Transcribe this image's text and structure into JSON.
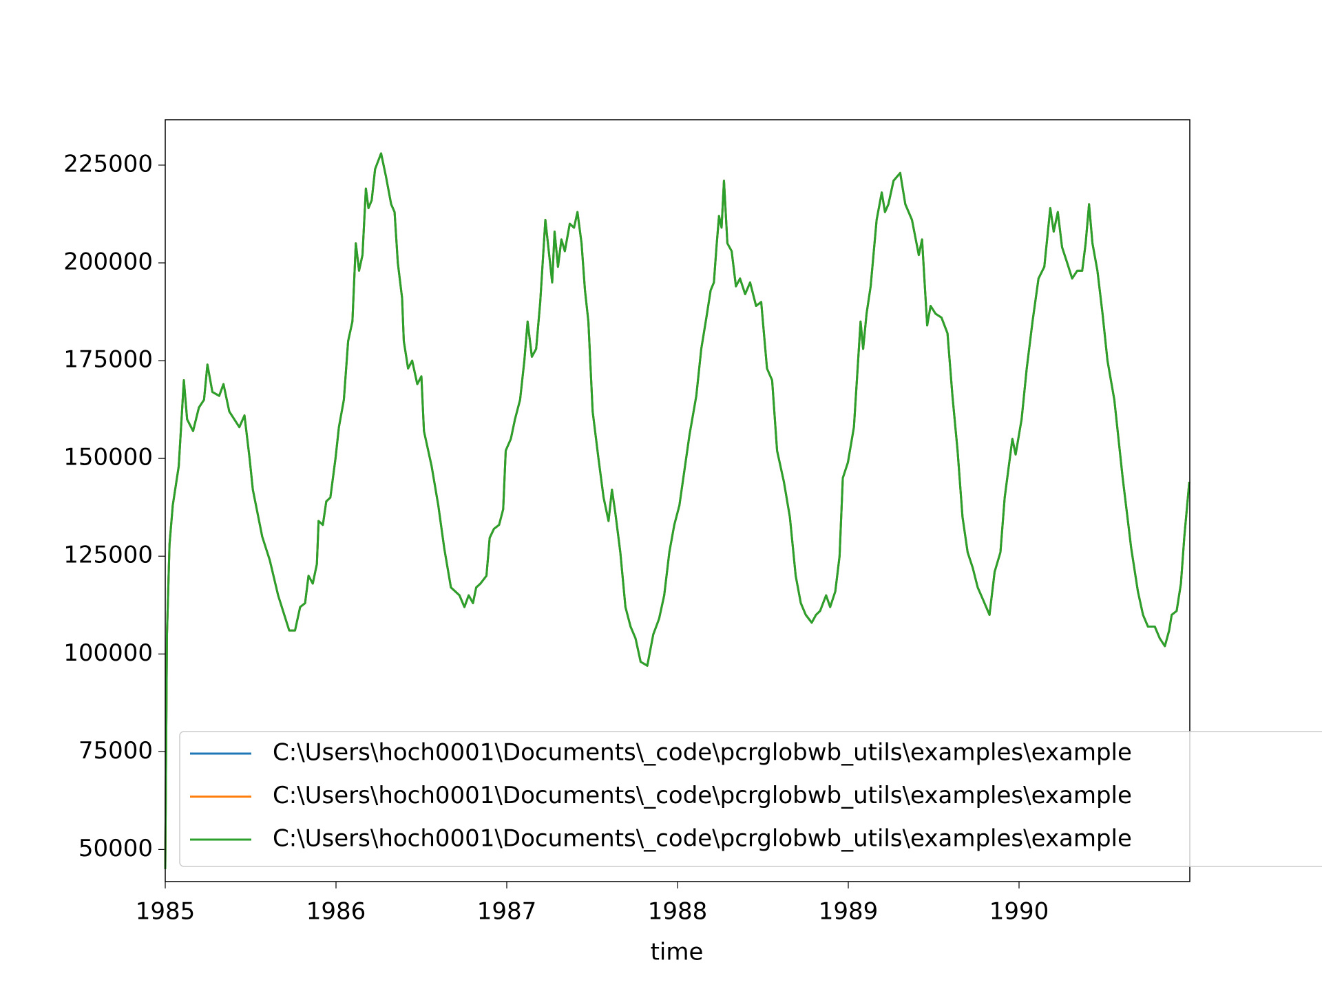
{
  "chart_data": {
    "type": "line",
    "xlabel": "time",
    "xlim": [
      1985,
      1991
    ],
    "xticks": [
      1985,
      1986,
      1987,
      1988,
      1989,
      1990
    ],
    "ylim": [
      41800,
      236600
    ],
    "yticks": [
      50000,
      75000,
      100000,
      125000,
      150000,
      175000,
      200000,
      225000
    ],
    "grid": false,
    "legend": "lower left",
    "x": [
      1985,
      1985.01,
      1985.025,
      1985.044,
      1985.079,
      1985.109,
      1985.128,
      1985.163,
      1985.197,
      1985.227,
      1985.247,
      1985.276,
      1985.316,
      1985.341,
      1985.375,
      1985.434,
      1985.464,
      1985.494,
      1985.513,
      1985.568,
      1985.612,
      1985.661,
      1985.726,
      1985.76,
      1985.79,
      1985.819,
      1985.839,
      1985.864,
      1985.888,
      1985.898,
      1985.923,
      1985.943,
      1985.967,
      1985.997,
      1986.017,
      1986.046,
      1986.071,
      1986.096,
      1986.116,
      1986.135,
      1986.155,
      1986.175,
      1986.19,
      1986.209,
      1986.229,
      1986.264,
      1986.293,
      1986.323,
      1986.343,
      1986.362,
      1986.387,
      1986.397,
      1986.422,
      1986.446,
      1986.476,
      1986.5,
      1986.515,
      1986.56,
      1986.599,
      1986.634,
      1986.673,
      1986.723,
      1986.752,
      1986.777,
      1986.802,
      1986.821,
      1986.846,
      1986.881,
      1986.9,
      1986.925,
      1986.955,
      1986.979,
      1986.994,
      1987.024,
      1987.048,
      1987.078,
      1987.103,
      1987.122,
      1987.147,
      1987.172,
      1987.196,
      1987.226,
      1987.246,
      1987.266,
      1987.28,
      1987.3,
      1987.32,
      1987.34,
      1987.369,
      1987.394,
      1987.414,
      1987.438,
      1987.458,
      1987.478,
      1987.503,
      1987.537,
      1987.567,
      1987.596,
      1987.616,
      1987.636,
      1987.665,
      1987.695,
      1987.725,
      1987.754,
      1987.784,
      1987.823,
      1987.858,
      1987.892,
      1987.922,
      1987.952,
      1987.981,
      1988.011,
      1988.07,
      1988.11,
      1988.139,
      1988.169,
      1988.194,
      1988.213,
      1988.228,
      1988.243,
      1988.258,
      1988.272,
      1988.292,
      1988.317,
      1988.342,
      1988.366,
      1988.396,
      1988.425,
      1988.46,
      1988.49,
      1988.524,
      1988.554,
      1988.583,
      1988.623,
      1988.658,
      1988.692,
      1988.722,
      1988.751,
      1988.786,
      1988.811,
      1988.835,
      1988.87,
      1988.894,
      1988.924,
      1988.949,
      1988.968,
      1988.998,
      1989.033,
      1989.072,
      1989.087,
      1989.107,
      1989.131,
      1989.166,
      1989.196,
      1989.215,
      1989.235,
      1989.265,
      1989.304,
      1989.334,
      1989.373,
      1989.413,
      1989.432,
      1989.462,
      1989.482,
      1989.511,
      1989.546,
      1989.581,
      1989.61,
      1989.64,
      1989.669,
      1989.699,
      1989.729,
      1989.758,
      1989.788,
      1989.827,
      1989.857,
      1989.891,
      1989.916,
      1989.961,
      1989.98,
      1990.015,
      1990.045,
      1990.079,
      1990.114,
      1990.148,
      1990.183,
      1990.203,
      1990.227,
      1990.252,
      1990.282,
      1990.311,
      1990.341,
      1990.37,
      1990.39,
      1990.41,
      1990.43,
      1990.459,
      1990.489,
      1990.518,
      1990.558,
      1990.607,
      1990.657,
      1990.696,
      1990.726,
      1990.755,
      1990.795,
      1990.824,
      1990.854,
      1990.879,
      1990.894,
      1990.923,
      1990.948,
      1990.968,
      1990.997
    ],
    "series": [
      {
        "name": "C:\\Users\\hoch0001\\Documents\\_code\\pcrglobwb_utils\\examples\\example",
        "color": "#1f77b4",
        "values": [
          45000,
          105000,
          128000,
          138000,
          148000,
          170000,
          160000,
          157000,
          163000,
          165000,
          174000,
          167000,
          166000,
          169000,
          162000,
          158000,
          161000,
          150000,
          142000,
          130000,
          124000,
          115000,
          106000,
          106000,
          112000,
          113000,
          120000,
          118000,
          123000,
          134000,
          133000,
          139000,
          140000,
          150000,
          158000,
          165000,
          180000,
          185000,
          205000,
          198000,
          202000,
          219000,
          214000,
          216000,
          224000,
          228000,
          222000,
          215000,
          213000,
          200000,
          191000,
          180000,
          173000,
          175000,
          169000,
          171000,
          157000,
          148000,
          138000,
          127000,
          117000,
          115000,
          112000,
          115000,
          113000,
          117000,
          118000,
          120000,
          129700,
          132000,
          133000,
          137000,
          152000,
          155000,
          160000,
          165000,
          175000,
          185000,
          176000,
          178000,
          190000,
          211000,
          203000,
          195000,
          208000,
          199000,
          206000,
          203000,
          210000,
          209000,
          213000,
          205000,
          193000,
          185000,
          162000,
          150000,
          140000,
          134000,
          142000,
          136000,
          126000,
          112000,
          107000,
          104000,
          98000,
          97000,
          105000,
          109000,
          115000,
          126000,
          133000,
          138000,
          156000,
          166000,
          178000,
          186000,
          193000,
          195000,
          204000,
          212000,
          209000,
          221000,
          205000,
          203000,
          194000,
          196000,
          192000,
          195000,
          189000,
          190000,
          173000,
          170000,
          152000,
          144000,
          135000,
          120000,
          113000,
          110000,
          108000,
          110000,
          111000,
          115000,
          112000,
          116000,
          125000,
          145000,
          149000,
          158000,
          185000,
          178000,
          187000,
          194000,
          211000,
          218000,
          213000,
          215000,
          221000,
          223000,
          215000,
          211000,
          202000,
          206000,
          184000,
          189000,
          187000,
          186000,
          182000,
          166000,
          152000,
          135000,
          126000,
          122000,
          117000,
          114000,
          110000,
          121000,
          126000,
          140000,
          155000,
          151000,
          160000,
          173000,
          185000,
          196000,
          199000,
          214000,
          208000,
          213000,
          204000,
          200000,
          196000,
          198000,
          198000,
          205000,
          215000,
          205000,
          198000,
          187000,
          175000,
          165000,
          145000,
          127000,
          116000,
          110000,
          107000,
          107000,
          104000,
          102000,
          106000,
          110000,
          111000,
          118000,
          130000,
          144000
        ]
      },
      {
        "name": "C:\\Users\\hoch0001\\Documents\\_code\\pcrglobwb_utils\\examples\\example",
        "color": "#ff7f0e",
        "values": [
          45000,
          105000,
          128000,
          138000,
          148000,
          170000,
          160000,
          157000,
          163000,
          165000,
          174000,
          167000,
          166000,
          169000,
          162000,
          158000,
          161000,
          150000,
          142000,
          130000,
          124000,
          115000,
          106000,
          106000,
          112000,
          113000,
          120000,
          118000,
          123000,
          134000,
          133000,
          139000,
          140000,
          150000,
          158000,
          165000,
          180000,
          185000,
          205000,
          198000,
          202000,
          219000,
          214000,
          216000,
          224000,
          228000,
          222000,
          215000,
          213000,
          200000,
          191000,
          180000,
          173000,
          175000,
          169000,
          171000,
          157000,
          148000,
          138000,
          127000,
          117000,
          115000,
          112000,
          115000,
          113000,
          117000,
          118000,
          120000,
          129700,
          132000,
          133000,
          137000,
          152000,
          155000,
          160000,
          165000,
          175000,
          185000,
          176000,
          178000,
          190000,
          211000,
          203000,
          195000,
          208000,
          199000,
          206000,
          203000,
          210000,
          209000,
          213000,
          205000,
          193000,
          185000,
          162000,
          150000,
          140000,
          134000,
          142000,
          136000,
          126000,
          112000,
          107000,
          104000,
          98000,
          97000,
          105000,
          109000,
          115000,
          126000,
          133000,
          138000,
          156000,
          166000,
          178000,
          186000,
          193000,
          195000,
          204000,
          212000,
          209000,
          221000,
          205000,
          203000,
          194000,
          196000,
          192000,
          195000,
          189000,
          190000,
          173000,
          170000,
          152000,
          144000,
          135000,
          120000,
          113000,
          110000,
          108000,
          110000,
          111000,
          115000,
          112000,
          116000,
          125000,
          145000,
          149000,
          158000,
          185000,
          178000,
          187000,
          194000,
          211000,
          218000,
          213000,
          215000,
          221000,
          223000,
          215000,
          211000,
          202000,
          206000,
          184000,
          189000,
          187000,
          186000,
          182000,
          166000,
          152000,
          135000,
          126000,
          122000,
          117000,
          114000,
          110000,
          121000,
          126000,
          140000,
          155000,
          151000,
          160000,
          173000,
          185000,
          196000,
          199000,
          214000,
          208000,
          213000,
          204000,
          200000,
          196000,
          198000,
          198000,
          205000,
          215000,
          205000,
          198000,
          187000,
          175000,
          165000,
          145000,
          127000,
          116000,
          110000,
          107000,
          107000,
          104000,
          102000,
          106000,
          110000,
          111000,
          118000,
          130000,
          144000
        ]
      },
      {
        "name": "C:\\Users\\hoch0001\\Documents\\_code\\pcrglobwb_utils\\examples\\example",
        "color": "#2ca02c",
        "values": [
          45000,
          105000,
          128000,
          138000,
          148000,
          170000,
          160000,
          157000,
          163000,
          165000,
          174000,
          167000,
          166000,
          169000,
          162000,
          158000,
          161000,
          150000,
          142000,
          130000,
          124000,
          115000,
          106000,
          106000,
          112000,
          113000,
          120000,
          118000,
          123000,
          134000,
          133000,
          139000,
          140000,
          150000,
          158000,
          165000,
          180000,
          185000,
          205000,
          198000,
          202000,
          219000,
          214000,
          216000,
          224000,
          228000,
          222000,
          215000,
          213000,
          200000,
          191000,
          180000,
          173000,
          175000,
          169000,
          171000,
          157000,
          148000,
          138000,
          127000,
          117000,
          115000,
          112000,
          115000,
          113000,
          117000,
          118000,
          120000,
          129700,
          132000,
          133000,
          137000,
          152000,
          155000,
          160000,
          165000,
          175000,
          185000,
          176000,
          178000,
          190000,
          211000,
          203000,
          195000,
          208000,
          199000,
          206000,
          203000,
          210000,
          209000,
          213000,
          205000,
          193000,
          185000,
          162000,
          150000,
          140000,
          134000,
          142000,
          136000,
          126000,
          112000,
          107000,
          104000,
          98000,
          97000,
          105000,
          109000,
          115000,
          126000,
          133000,
          138000,
          156000,
          166000,
          178000,
          186000,
          193000,
          195000,
          204000,
          212000,
          209000,
          221000,
          205000,
          203000,
          194000,
          196000,
          192000,
          195000,
          189000,
          190000,
          173000,
          170000,
          152000,
          144000,
          135000,
          120000,
          113000,
          110000,
          108000,
          110000,
          111000,
          115000,
          112000,
          116000,
          125000,
          145000,
          149000,
          158000,
          185000,
          178000,
          187000,
          194000,
          211000,
          218000,
          213000,
          215000,
          221000,
          223000,
          215000,
          211000,
          202000,
          206000,
          184000,
          189000,
          187000,
          186000,
          182000,
          166000,
          152000,
          135000,
          126000,
          122000,
          117000,
          114000,
          110000,
          121000,
          126000,
          140000,
          155000,
          151000,
          160000,
          173000,
          185000,
          196000,
          199000,
          214000,
          208000,
          213000,
          204000,
          200000,
          196000,
          198000,
          198000,
          205000,
          215000,
          205000,
          198000,
          187000,
          175000,
          165000,
          145000,
          127000,
          116000,
          110000,
          107000,
          107000,
          104000,
          102000,
          106000,
          110000,
          111000,
          118000,
          130000,
          144000
        ]
      }
    ]
  }
}
